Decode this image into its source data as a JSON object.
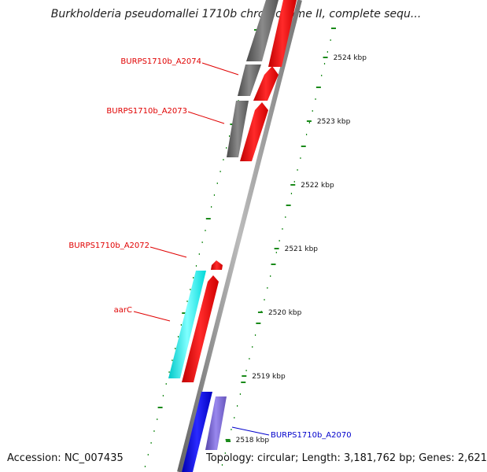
{
  "title": "Burkholderia pseudomallei 1710b chromosome II, complete sequ...",
  "footer": {
    "accession": "Accession: NC_007435",
    "topology": "Topology: circular; Length: 3,181,762 bp; Genes: 2,621"
  },
  "ticks": [
    {
      "label": "2524 kbp",
      "kbp": 2524
    },
    {
      "label": "2523 kbp",
      "kbp": 2523
    },
    {
      "label": "2522 kbp",
      "kbp": 2522
    },
    {
      "label": "2521 kbp",
      "kbp": 2521
    },
    {
      "label": "2520 kbp",
      "kbp": 2520
    },
    {
      "label": "2519 kbp",
      "kbp": 2519
    },
    {
      "label": "2518 kbp",
      "kbp": 2518
    }
  ],
  "genes": [
    {
      "label": "BURPS1710b_A2074",
      "color": "#e00000"
    },
    {
      "label": "BURPS1710b_A2073",
      "color": "#e00000"
    },
    {
      "label": "BURPS1710b_A2072",
      "color": "#e00000"
    },
    {
      "label": "aarC",
      "color": "#e00000"
    },
    {
      "label": "BURPS1710b_A2070",
      "color": "#0000cc"
    }
  ],
  "colors": {
    "forward_cds": "#ff0000",
    "reverse_cds": "#00ffff",
    "forward_gene": "#666666",
    "blue_gene": "#0000ff",
    "lavender_gene": "#7766cc",
    "backbone": "#888888",
    "tick_mark": "#1a8a1a"
  }
}
